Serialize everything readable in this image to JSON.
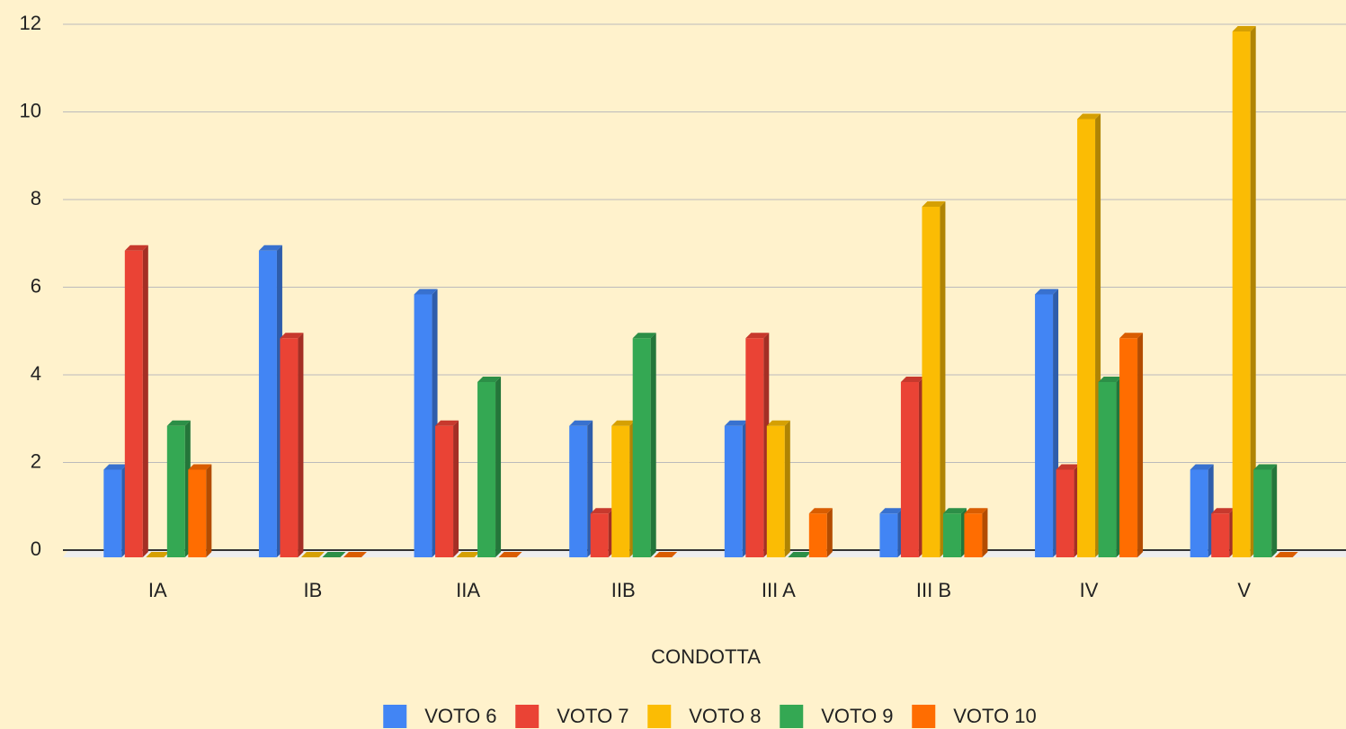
{
  "chart_data": {
    "type": "bar3d",
    "x_label": "CONDOTTA",
    "categories": [
      "IA",
      "IB",
      "IIA",
      "IIB",
      "III A",
      "III B",
      "IV",
      "V"
    ],
    "series": [
      {
        "name": "VOTO 6",
        "color": "#4285f4",
        "values": [
          2,
          7,
          6,
          3,
          3,
          1,
          6,
          2
        ]
      },
      {
        "name": "VOTO 7",
        "color": "#ea4335",
        "values": [
          7,
          5,
          3,
          1,
          5,
          4,
          2,
          1
        ]
      },
      {
        "name": "VOTO 8",
        "color": "#fbbc04",
        "values": [
          0,
          0,
          0,
          3,
          3,
          8,
          10,
          12
        ]
      },
      {
        "name": "VOTO 9",
        "color": "#34a853",
        "values": [
          3,
          0,
          4,
          5,
          0,
          1,
          4,
          2
        ]
      },
      {
        "name": "VOTO 10",
        "color": "#ff6d01",
        "values": [
          2,
          0,
          0,
          0,
          1,
          1,
          5,
          0
        ]
      }
    ],
    "ylim": [
      0,
      12
    ],
    "yticks": [
      0,
      2,
      4,
      6,
      8,
      10,
      12
    ],
    "grid": true,
    "legend": "bottom"
  }
}
